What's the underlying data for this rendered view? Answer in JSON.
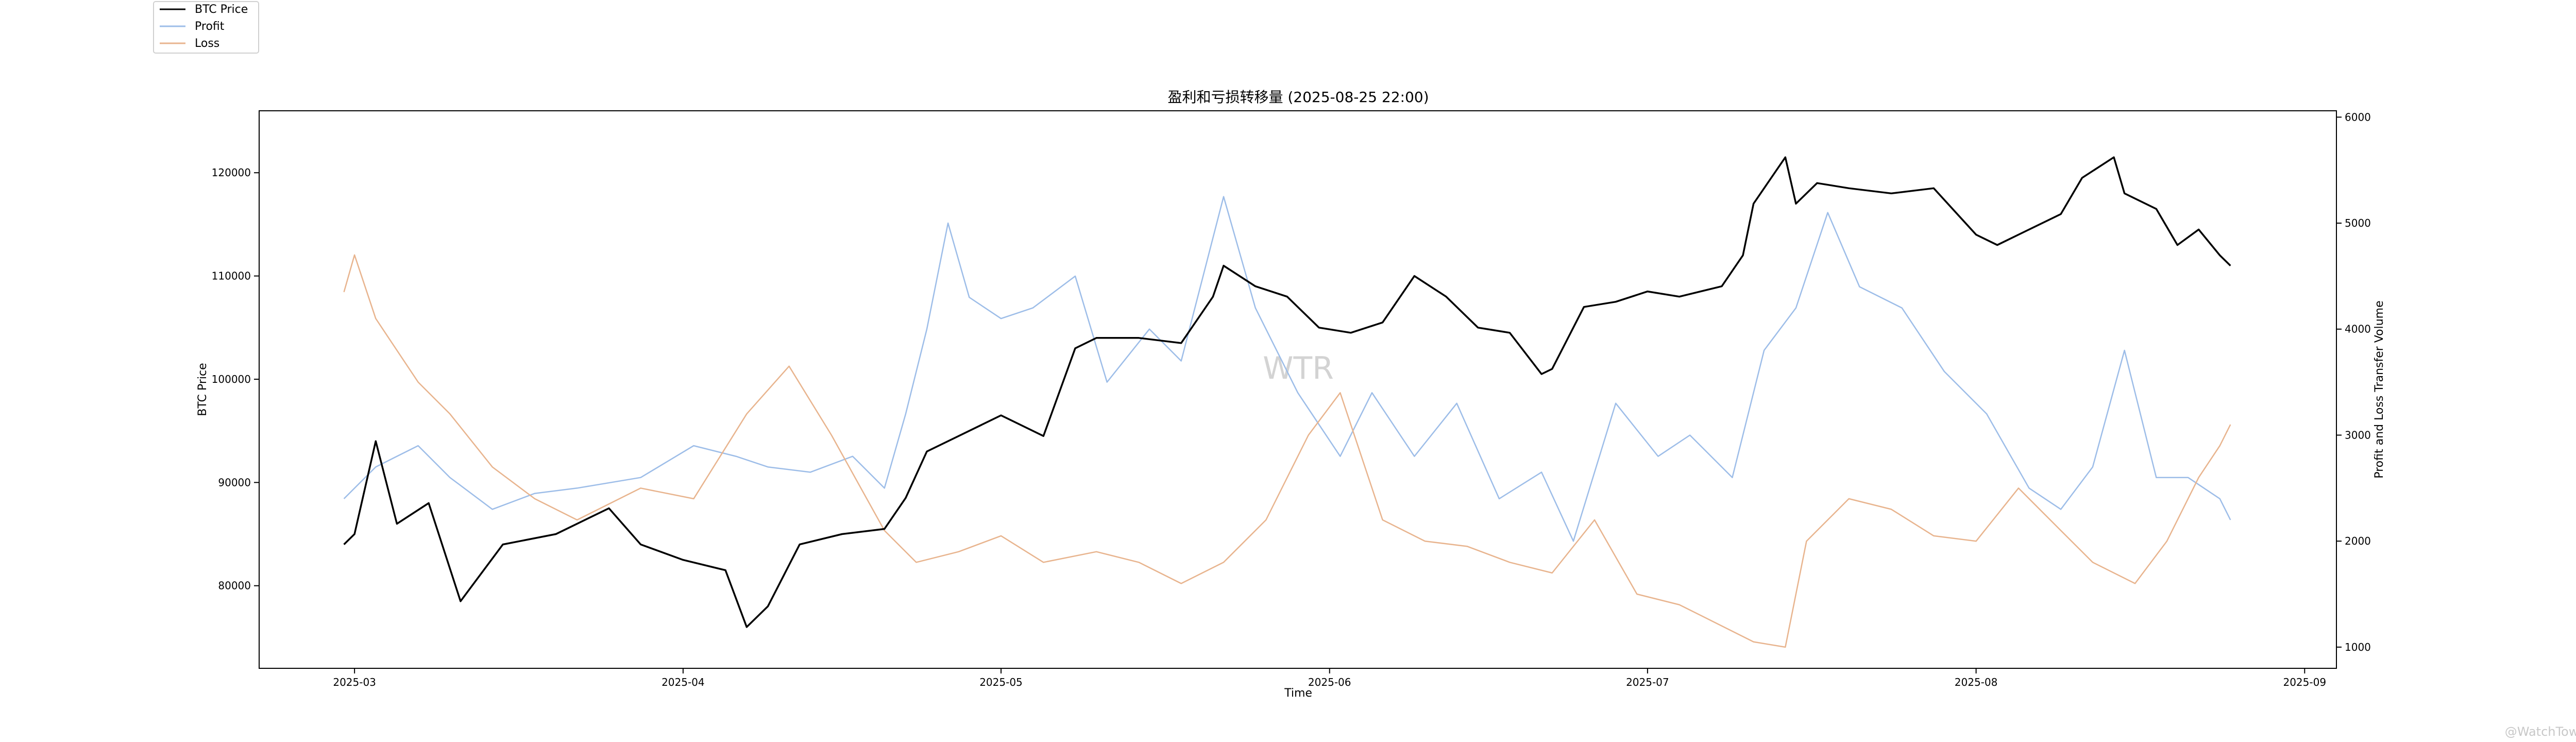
{
  "chart_data": {
    "type": "line",
    "title": "盈利和亏损转移量 (2025-08-25 22:00)",
    "xlabel": "Time",
    "ylabel_left": "BTC Price",
    "ylabel_right": "Profit and Loss Transfer Volume",
    "x_ticks": [
      "2025-03",
      "2025-04",
      "2025-05",
      "2025-06",
      "2025-07",
      "2025-08",
      "2025-09"
    ],
    "xlim": [
      "2025-02-20",
      "2025-09-04"
    ],
    "ylim_left": [
      72000,
      126000
    ],
    "ylim_right": [
      800,
      6060
    ],
    "y_ticks_left": [
      80000,
      90000,
      100000,
      110000,
      120000
    ],
    "y_ticks_right": [
      1000,
      2000,
      3000,
      4000,
      5000,
      6000
    ],
    "legend": {
      "placement": "top-left",
      "entries": [
        "BTC Price",
        "Profit",
        "Loss"
      ]
    },
    "watermark": "WTR",
    "corner_mark": "@WatchTower",
    "grid": false,
    "series": [
      {
        "name": "BTC Price",
        "axis": "left",
        "color": "#000000",
        "x": [
          "2025-02-28",
          "2025-03-01",
          "2025-03-03",
          "2025-03-05",
          "2025-03-08",
          "2025-03-11",
          "2025-03-15",
          "2025-03-20",
          "2025-03-25",
          "2025-03-28",
          "2025-04-01",
          "2025-04-05",
          "2025-04-07",
          "2025-04-09",
          "2025-04-12",
          "2025-04-16",
          "2025-04-20",
          "2025-04-22",
          "2025-04-24",
          "2025-04-27",
          "2025-05-01",
          "2025-05-05",
          "2025-05-08",
          "2025-05-10",
          "2025-05-14",
          "2025-05-18",
          "2025-05-21",
          "2025-05-22",
          "2025-05-25",
          "2025-05-28",
          "2025-05-31",
          "2025-06-03",
          "2025-06-06",
          "2025-06-09",
          "2025-06-12",
          "2025-06-15",
          "2025-06-18",
          "2025-06-21",
          "2025-06-22",
          "2025-06-25",
          "2025-06-28",
          "2025-07-01",
          "2025-07-04",
          "2025-07-08",
          "2025-07-10",
          "2025-07-11",
          "2025-07-14",
          "2025-07-15",
          "2025-07-17",
          "2025-07-20",
          "2025-07-24",
          "2025-07-28",
          "2025-08-01",
          "2025-08-03",
          "2025-08-06",
          "2025-08-09",
          "2025-08-11",
          "2025-08-14",
          "2025-08-15",
          "2025-08-18",
          "2025-08-20",
          "2025-08-22",
          "2025-08-24",
          "2025-08-25"
        ],
        "values": [
          84000,
          85000,
          94000,
          86000,
          88000,
          78500,
          84000,
          85000,
          87500,
          84000,
          82500,
          81500,
          76000,
          78000,
          84000,
          85000,
          85500,
          88500,
          93000,
          94500,
          96500,
          94500,
          103000,
          104000,
          104000,
          103500,
          108000,
          111000,
          109000,
          108000,
          105000,
          104500,
          105500,
          110000,
          108000,
          105000,
          104500,
          100500,
          101000,
          107000,
          107500,
          108500,
          108000,
          109000,
          112000,
          117000,
          121500,
          117000,
          119000,
          118500,
          118000,
          118500,
          114000,
          113000,
          114500,
          116000,
          119500,
          121500,
          118000,
          116500,
          113000,
          114500,
          112000,
          111000
        ]
      },
      {
        "name": "Profit",
        "axis": "right",
        "color": "#9dbde8",
        "x": [
          "2025-02-28",
          "2025-03-03",
          "2025-03-07",
          "2025-03-10",
          "2025-03-14",
          "2025-03-18",
          "2025-03-22",
          "2025-03-28",
          "2025-04-02",
          "2025-04-06",
          "2025-04-09",
          "2025-04-13",
          "2025-04-17",
          "2025-04-20",
          "2025-04-22",
          "2025-04-24",
          "2025-04-26",
          "2025-04-28",
          "2025-05-01",
          "2025-05-04",
          "2025-05-08",
          "2025-05-11",
          "2025-05-15",
          "2025-05-18",
          "2025-05-22",
          "2025-05-25",
          "2025-05-29",
          "2025-06-02",
          "2025-06-05",
          "2025-06-09",
          "2025-06-13",
          "2025-06-17",
          "2025-06-21",
          "2025-06-24",
          "2025-06-28",
          "2025-07-02",
          "2025-07-05",
          "2025-07-09",
          "2025-07-12",
          "2025-07-15",
          "2025-07-18",
          "2025-07-21",
          "2025-07-25",
          "2025-07-29",
          "2025-08-02",
          "2025-08-06",
          "2025-08-09",
          "2025-08-12",
          "2025-08-15",
          "2025-08-18",
          "2025-08-21",
          "2025-08-24",
          "2025-08-25"
        ],
        "values": [
          2400,
          2700,
          2900,
          2600,
          2300,
          2450,
          2500,
          2600,
          2900,
          2800,
          2700,
          2650,
          2800,
          2500,
          3200,
          4000,
          5000,
          4300,
          4100,
          4200,
          4500,
          3500,
          4000,
          3700,
          5250,
          4200,
          3400,
          2800,
          3400,
          2800,
          3300,
          2400,
          2650,
          2000,
          3300,
          2800,
          3000,
          2600,
          3800,
          4200,
          5100,
          4400,
          4200,
          3600,
          3200,
          2500,
          2300,
          2700,
          3800,
          2600,
          2600,
          2400,
          2200
        ]
      },
      {
        "name": "Loss",
        "axis": "right",
        "color": "#e8b48e",
        "x": [
          "2025-02-28",
          "2025-03-01",
          "2025-03-03",
          "2025-03-07",
          "2025-03-10",
          "2025-03-14",
          "2025-03-18",
          "2025-03-22",
          "2025-03-28",
          "2025-04-02",
          "2025-04-07",
          "2025-04-11",
          "2025-04-15",
          "2025-04-20",
          "2025-04-23",
          "2025-04-27",
          "2025-05-01",
          "2025-05-05",
          "2025-05-10",
          "2025-05-14",
          "2025-05-18",
          "2025-05-22",
          "2025-05-26",
          "2025-05-30",
          "2025-06-02",
          "2025-06-06",
          "2025-06-10",
          "2025-06-14",
          "2025-06-18",
          "2025-06-22",
          "2025-06-26",
          "2025-06-30",
          "2025-07-04",
          "2025-07-08",
          "2025-07-11",
          "2025-07-14",
          "2025-07-16",
          "2025-07-20",
          "2025-07-24",
          "2025-07-28",
          "2025-08-01",
          "2025-08-05",
          "2025-08-09",
          "2025-08-12",
          "2025-08-16",
          "2025-08-19",
          "2025-08-22",
          "2025-08-24",
          "2025-08-25"
        ],
        "values": [
          4350,
          4700,
          4100,
          3500,
          3200,
          2700,
          2400,
          2200,
          2500,
          2400,
          3200,
          3650,
          3000,
          2100,
          1800,
          1900,
          2050,
          1800,
          1900,
          1800,
          1600,
          1800,
          2200,
          3000,
          3400,
          2200,
          2000,
          1950,
          1800,
          1700,
          2200,
          1500,
          1400,
          1200,
          1050,
          1000,
          2000,
          2400,
          2300,
          2050,
          2000,
          2500,
          2100,
          1800,
          1600,
          2000,
          2600,
          2900,
          3100
        ]
      }
    ]
  }
}
